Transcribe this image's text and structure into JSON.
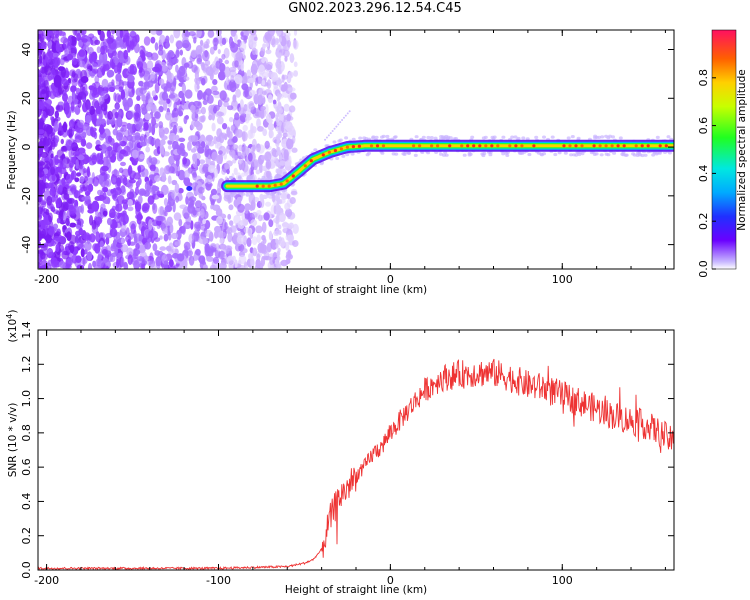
{
  "title": "GN02.2023.296.12.54.C45",
  "colors": {
    "line": "#ee3333",
    "axis": "#000000",
    "ridge_low": "#8a2be2"
  },
  "chart_data": [
    {
      "type": "heatmap",
      "xlabel": "Height of straight line (km)",
      "ylabel": "Frequency (Hz)",
      "xlim": [
        -205,
        165
      ],
      "ylim": [
        -50,
        48
      ],
      "x_ticks": [
        "-200",
        "-100",
        "0",
        "100"
      ],
      "x_tick_values": [
        -200,
        -100,
        0,
        100
      ],
      "y_ticks": [
        "40",
        "20",
        "0",
        "-20",
        "-40"
      ],
      "y_tick_values": [
        40,
        20,
        0,
        -20,
        -40
      ],
      "ridge": {
        "x": [
          -95,
          -85,
          -70,
          -62,
          -55,
          -45,
          -35,
          -25,
          -15,
          0,
          50,
          100,
          165
        ],
        "y": [
          -16,
          -16,
          -16,
          -15,
          -11,
          -5,
          -2,
          0,
          0.5,
          0.5,
          0.5,
          0.5,
          0.5
        ]
      },
      "colorbar": {
        "label": "Normalized spectral amplitude",
        "ticks": [
          "0.0",
          "0.2",
          "0.4",
          "0.6",
          "0.8"
        ],
        "tick_values": [
          0,
          0.2,
          0.4,
          0.6,
          0.8
        ],
        "range": [
          0,
          1
        ],
        "colormap": "rainbow"
      }
    },
    {
      "type": "line",
      "xlabel": "Height of straight line (km)",
      "ylabel": "SNR (10 * v/v)",
      "y_multiplier": "(x10",
      "y_multiplier_exp": "4",
      "y_multiplier_close": ")",
      "xlim": [
        -205,
        165
      ],
      "ylim": [
        0,
        1.4
      ],
      "x_ticks": [
        "-200",
        "-100",
        "0",
        "100"
      ],
      "x_tick_values": [
        -200,
        -100,
        0,
        100
      ],
      "y_ticks": [
        "0.0",
        "0.2",
        "0.4",
        "0.6",
        "0.8",
        "1.0",
        "1.2",
        "1.4"
      ],
      "y_tick_values": [
        0,
        0.2,
        0.4,
        0.6,
        0.8,
        1.0,
        1.2,
        1.4
      ],
      "series": [
        {
          "x": [
            -205,
            -150,
            -100,
            -60,
            -50,
            -45,
            -40,
            -35,
            -30,
            -25,
            -20,
            -15,
            -10,
            -5,
            0,
            10,
            20,
            30,
            40,
            50,
            60,
            70,
            80,
            90,
            100,
            110,
            120,
            130,
            140,
            150,
            160,
            165
          ],
          "y": [
            0.01,
            0.01,
            0.01,
            0.02,
            0.04,
            0.06,
            0.12,
            0.3,
            0.42,
            0.48,
            0.55,
            0.6,
            0.68,
            0.72,
            0.8,
            0.93,
            1.05,
            1.12,
            1.14,
            1.15,
            1.15,
            1.12,
            1.08,
            1.06,
            1.02,
            0.98,
            0.94,
            0.9,
            0.87,
            0.84,
            0.78,
            0.74
          ],
          "color": "#ee3333"
        }
      ]
    }
  ]
}
